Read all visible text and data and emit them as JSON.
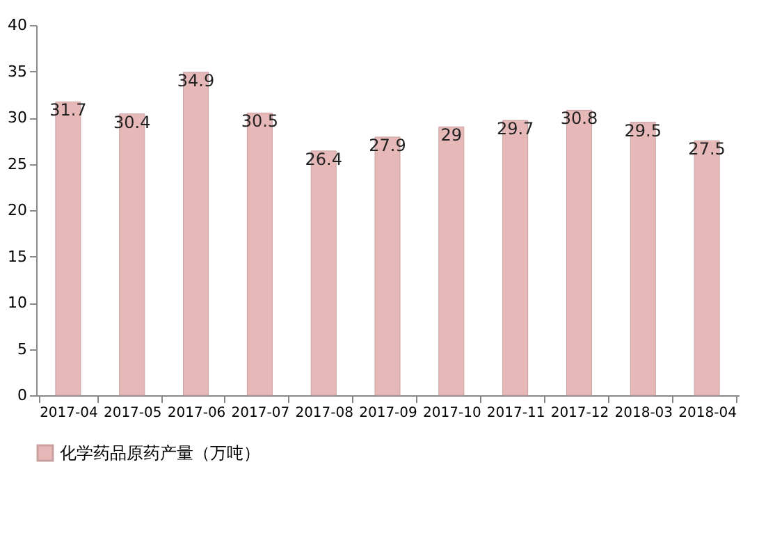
{
  "chart_data": {
    "type": "bar",
    "categories": [
      "2017-04",
      "2017-05",
      "2017-06",
      "2017-07",
      "2017-08",
      "2017-09",
      "2017-10",
      "2017-11",
      "2017-12",
      "2018-03",
      "2018-04"
    ],
    "series": [
      {
        "name": "化学药品原药产量（万吨）",
        "color": "#e6b9b8",
        "values": [
          31.7,
          30.4,
          34.9,
          30.5,
          26.4,
          27.9,
          29,
          29.7,
          30.8,
          29.5,
          27.5
        ]
      }
    ],
    "ylim": [
      0,
      40
    ],
    "yticks": [
      0,
      5,
      10,
      15,
      20,
      25,
      30,
      35,
      40
    ],
    "grid": false,
    "legend": "bottom",
    "data_labels": true
  }
}
